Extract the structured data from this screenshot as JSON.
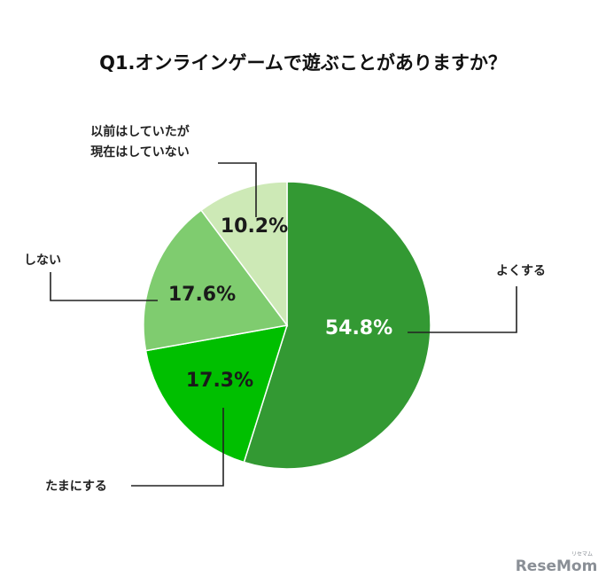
{
  "chart_data": {
    "type": "pie",
    "title": "Q1.オンラインゲームで遊ぶことがありますか？",
    "categories": [
      "よくする",
      "たまにする",
      "しない",
      "以前はしていたが現在はしていない"
    ],
    "category_lines": [
      [
        "よくする"
      ],
      [
        "たまにする"
      ],
      [
        "しない"
      ],
      [
        "以前はしていたが",
        "現在はしていない"
      ]
    ],
    "values": [
      54.8,
      17.3,
      17.6,
      10.2
    ],
    "value_labels": [
      "54.8%",
      "17.3%",
      "17.6%",
      "10.2%"
    ],
    "colors": [
      "#339933",
      "#00bf00",
      "#7fcc6f",
      "#cde9b6"
    ],
    "label_colors": [
      "#ffffff",
      "#1a1a1a",
      "#1a1a1a",
      "#1a1a1a"
    ]
  },
  "brand": {
    "name": "ReseMom",
    "small": "リセマム"
  }
}
